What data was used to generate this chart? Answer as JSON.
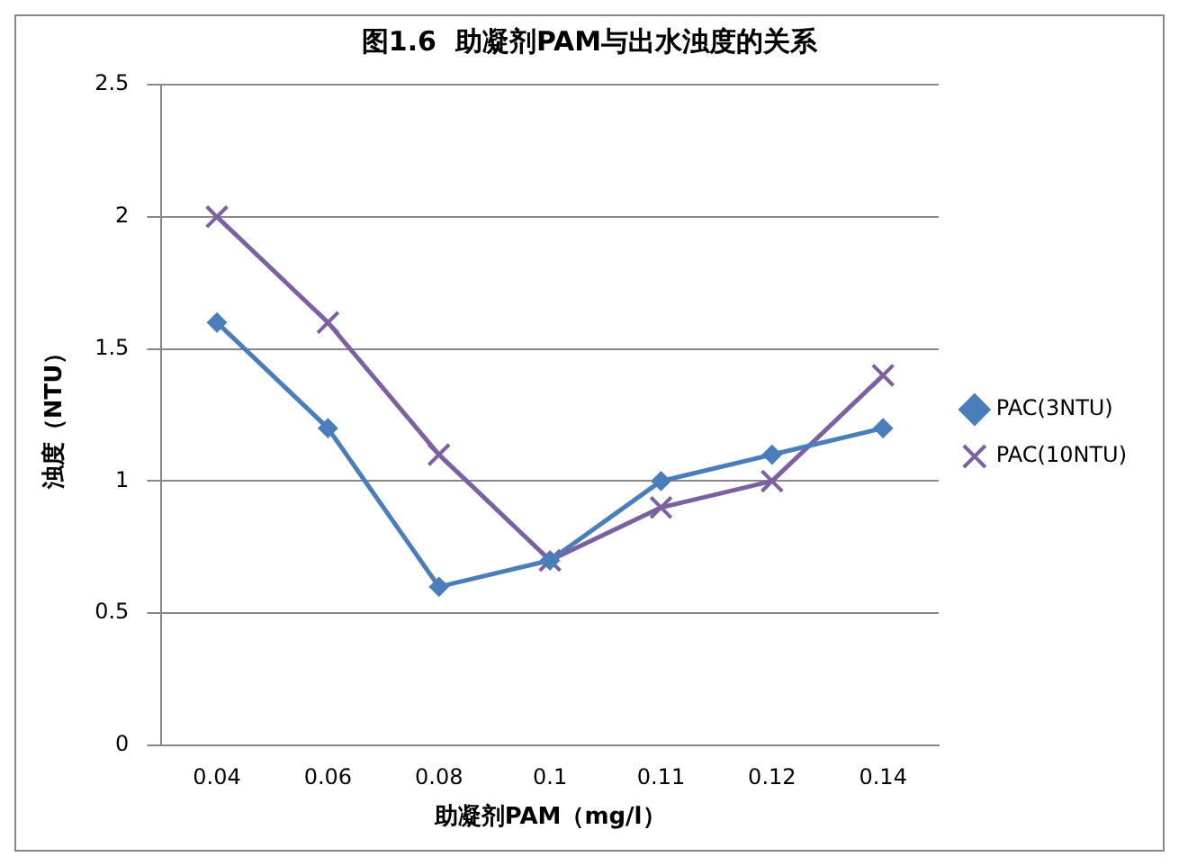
{
  "chart_data": {
    "type": "line",
    "title": "图1.6  助凝剂PAM与出水浊度的关系",
    "xlabel": "助凝剂PAM（mg/l）",
    "ylabel": "浊度（NTU）",
    "categories": [
      "0.04",
      "0.06",
      "0.08",
      "0.1",
      "0.11",
      "0.12",
      "0.14"
    ],
    "series": [
      {
        "name": "PAC(3NTU)",
        "color": "#4a7ebb",
        "marker": "diamond",
        "values": [
          1.6,
          1.2,
          0.6,
          0.7,
          1.0,
          1.1,
          1.2
        ]
      },
      {
        "name": "PAC(10NTU)",
        "color": "#7d60a0",
        "marker": "cross",
        "values": [
          2.0,
          1.6,
          1.1,
          0.7,
          0.9,
          1.0,
          1.4
        ]
      }
    ],
    "ylim": [
      0,
      2.5
    ],
    "yticks": [
      0,
      0.5,
      1,
      1.5,
      2,
      2.5
    ],
    "grid": "y",
    "legend": "right"
  }
}
